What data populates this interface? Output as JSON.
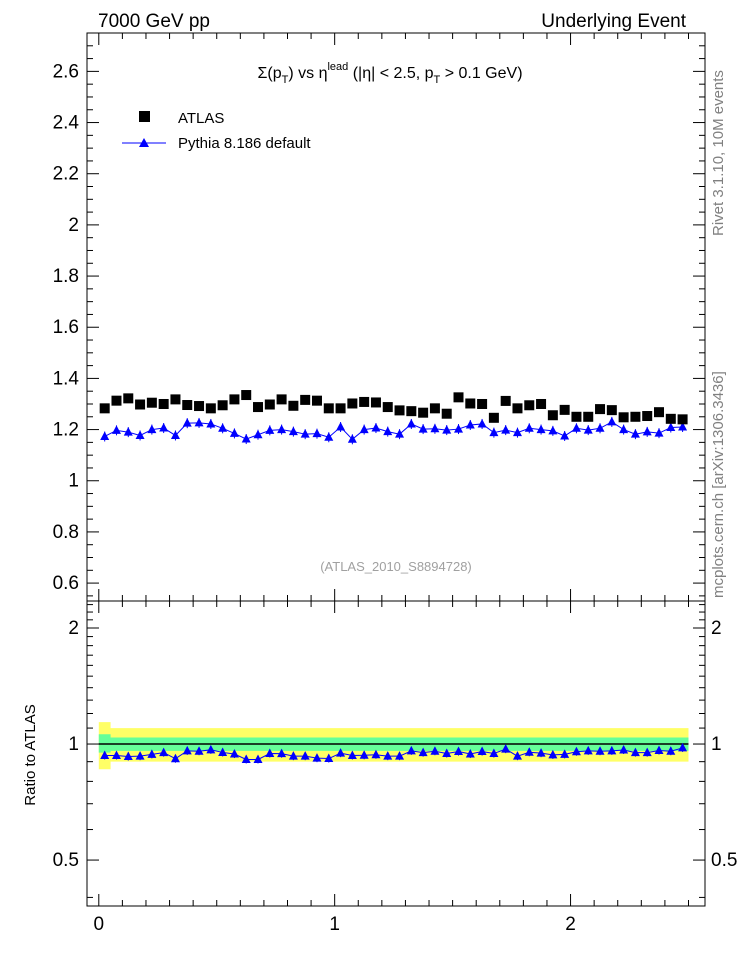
{
  "header": {
    "left": "7000 GeV pp",
    "right": "Underlying Event"
  },
  "side_text": {
    "rivet": "Rivet 3.1.10,  10M events",
    "mcplots": "mcplots.cern.ch [arXiv:1306.3436]"
  },
  "chart_data": [
    {
      "type": "scatter",
      "title_parts": {
        "sigma": "Σ(p",
        "sub1": "T",
        "mid": ") vs η",
        "sup": "lead",
        "rest": " (|η| < 2.5, p",
        "sub2": "T",
        "end": " > 0.1 GeV)"
      },
      "watermark": "(ATLAS_2010_S8894728)",
      "xlim": [
        -0.05,
        2.57
      ],
      "ylim": [
        0.53,
        2.75
      ],
      "yticks": [
        0.6,
        0.8,
        1,
        1.2,
        1.4,
        1.6,
        1.8,
        2,
        2.2,
        2.4,
        2.6
      ],
      "ytick_labels": [
        "0.6",
        "0.8",
        "1",
        "1.2",
        "1.4",
        "1.6",
        "1.8",
        "2",
        "2.2",
        "2.4",
        "2.6"
      ],
      "legend_position": "top-left",
      "x": [
        0.025,
        0.075,
        0.125,
        0.175,
        0.225,
        0.275,
        0.325,
        0.375,
        0.425,
        0.475,
        0.525,
        0.575,
        0.625,
        0.675,
        0.725,
        0.775,
        0.825,
        0.875,
        0.925,
        0.975,
        1.025,
        1.075,
        1.125,
        1.175,
        1.225,
        1.275,
        1.325,
        1.375,
        1.425,
        1.475,
        1.525,
        1.575,
        1.625,
        1.675,
        1.725,
        1.775,
        1.825,
        1.875,
        1.925,
        1.975,
        2.025,
        2.075,
        2.125,
        2.175,
        2.225,
        2.275,
        2.325,
        2.375,
        2.425,
        2.475
      ],
      "series": [
        {
          "name": "ATLAS",
          "color": "#000000",
          "marker": "square",
          "values": [
            1.283,
            1.313,
            1.322,
            1.298,
            1.305,
            1.3,
            1.318,
            1.296,
            1.292,
            1.283,
            1.295,
            1.318,
            1.335,
            1.288,
            1.298,
            1.318,
            1.293,
            1.316,
            1.313,
            1.283,
            1.283,
            1.302,
            1.308,
            1.306,
            1.288,
            1.275,
            1.272,
            1.266,
            1.283,
            1.262,
            1.326,
            1.302,
            1.3,
            1.246,
            1.312,
            1.283,
            1.295,
            1.3,
            1.256,
            1.277,
            1.25,
            1.25,
            1.28,
            1.276,
            1.248,
            1.25,
            1.253,
            1.268,
            1.242,
            1.24
          ]
        },
        {
          "name": "Pythia 8.186 default",
          "color": "#0000ff",
          "marker": "triangle",
          "values": [
            1.173,
            1.197,
            1.19,
            1.177,
            1.2,
            1.206,
            1.177,
            1.225,
            1.226,
            1.222,
            1.205,
            1.185,
            1.163,
            1.18,
            1.197,
            1.2,
            1.192,
            1.182,
            1.184,
            1.17,
            1.21,
            1.162,
            1.2,
            1.206,
            1.192,
            1.182,
            1.222,
            1.202,
            1.203,
            1.198,
            1.202,
            1.218,
            1.222,
            1.188,
            1.198,
            1.188,
            1.205,
            1.2,
            1.195,
            1.175,
            1.205,
            1.198,
            1.205,
            1.23,
            1.2,
            1.182,
            1.191,
            1.186,
            1.208,
            1.21
          ]
        }
      ]
    },
    {
      "type": "scatter",
      "ylabel": "Ratio to ATLAS",
      "xlim": [
        -0.05,
        2.57
      ],
      "ylim": [
        0.38,
        2.35
      ],
      "ylog": true,
      "yticks": [
        0.5,
        1,
        2
      ],
      "ytick_labels": [
        "0.5",
        "1",
        "2"
      ],
      "xticks": [
        0,
        1,
        2
      ],
      "xtick_labels": [
        "0",
        "1",
        "2"
      ],
      "band_colors": {
        "outer": "#ffff66",
        "inner": "#66ff99"
      },
      "series": [
        {
          "name": "Pythia 8.186 default",
          "color": "#0000ff",
          "marker": "triangle",
          "values": [
            0.934,
            0.934,
            0.928,
            0.93,
            0.94,
            0.95,
            0.916,
            0.96,
            0.958,
            0.966,
            0.951,
            0.942,
            0.912,
            0.912,
            0.945,
            0.944,
            0.93,
            0.93,
            0.919,
            0.917,
            0.947,
            0.934,
            0.935,
            0.938,
            0.93,
            0.93,
            0.96,
            0.95,
            0.958,
            0.945,
            0.956,
            0.942,
            0.956,
            0.945,
            0.97,
            0.93,
            0.952,
            0.947,
            0.937,
            0.94,
            0.955,
            0.96,
            0.958,
            0.96,
            0.965,
            0.95,
            0.95,
            0.962,
            0.958,
            0.977
          ]
        }
      ],
      "uncertainty_band": {
        "outer_low": [
          0.86,
          0.9,
          0.9,
          0.9,
          0.9,
          0.9,
          0.9,
          0.9,
          0.9,
          0.9,
          0.9,
          0.9,
          0.9,
          0.9,
          0.9,
          0.9,
          0.9,
          0.9,
          0.9,
          0.9,
          0.9,
          0.9,
          0.9,
          0.9,
          0.9,
          0.9,
          0.9,
          0.9,
          0.9,
          0.9,
          0.9,
          0.9,
          0.9,
          0.9,
          0.9,
          0.9,
          0.9,
          0.9,
          0.9,
          0.9,
          0.9,
          0.9,
          0.9,
          0.9,
          0.9,
          0.9,
          0.9,
          0.9,
          0.9,
          0.9
        ],
        "outer_high": [
          1.14,
          1.1,
          1.1,
          1.1,
          1.1,
          1.1,
          1.1,
          1.1,
          1.1,
          1.1,
          1.1,
          1.1,
          1.1,
          1.1,
          1.1,
          1.1,
          1.1,
          1.1,
          1.1,
          1.1,
          1.1,
          1.1,
          1.1,
          1.1,
          1.1,
          1.1,
          1.1,
          1.1,
          1.1,
          1.1,
          1.1,
          1.1,
          1.1,
          1.1,
          1.1,
          1.1,
          1.1,
          1.1,
          1.1,
          1.1,
          1.1,
          1.1,
          1.1,
          1.1,
          1.1,
          1.1,
          1.1,
          1.1,
          1.1,
          1.1
        ],
        "inner_low": [
          0.95,
          0.96,
          0.96,
          0.96,
          0.96,
          0.96,
          0.96,
          0.96,
          0.96,
          0.96,
          0.96,
          0.96,
          0.96,
          0.96,
          0.96,
          0.96,
          0.96,
          0.96,
          0.96,
          0.96,
          0.96,
          0.96,
          0.96,
          0.96,
          0.96,
          0.96,
          0.96,
          0.96,
          0.96,
          0.96,
          0.96,
          0.96,
          0.96,
          0.96,
          0.96,
          0.96,
          0.96,
          0.96,
          0.96,
          0.96,
          0.96,
          0.96,
          0.96,
          0.96,
          0.96,
          0.96,
          0.96,
          0.96,
          0.96,
          0.96
        ],
        "inner_high": [
          1.06,
          1.04,
          1.04,
          1.04,
          1.04,
          1.04,
          1.04,
          1.04,
          1.04,
          1.04,
          1.04,
          1.04,
          1.04,
          1.04,
          1.04,
          1.04,
          1.04,
          1.04,
          1.04,
          1.04,
          1.04,
          1.04,
          1.04,
          1.04,
          1.04,
          1.04,
          1.04,
          1.04,
          1.04,
          1.04,
          1.04,
          1.04,
          1.04,
          1.04,
          1.04,
          1.04,
          1.04,
          1.04,
          1.04,
          1.04,
          1.04,
          1.04,
          1.04,
          1.04,
          1.04,
          1.04,
          1.04,
          1.04,
          1.04,
          1.04
        ]
      }
    }
  ]
}
